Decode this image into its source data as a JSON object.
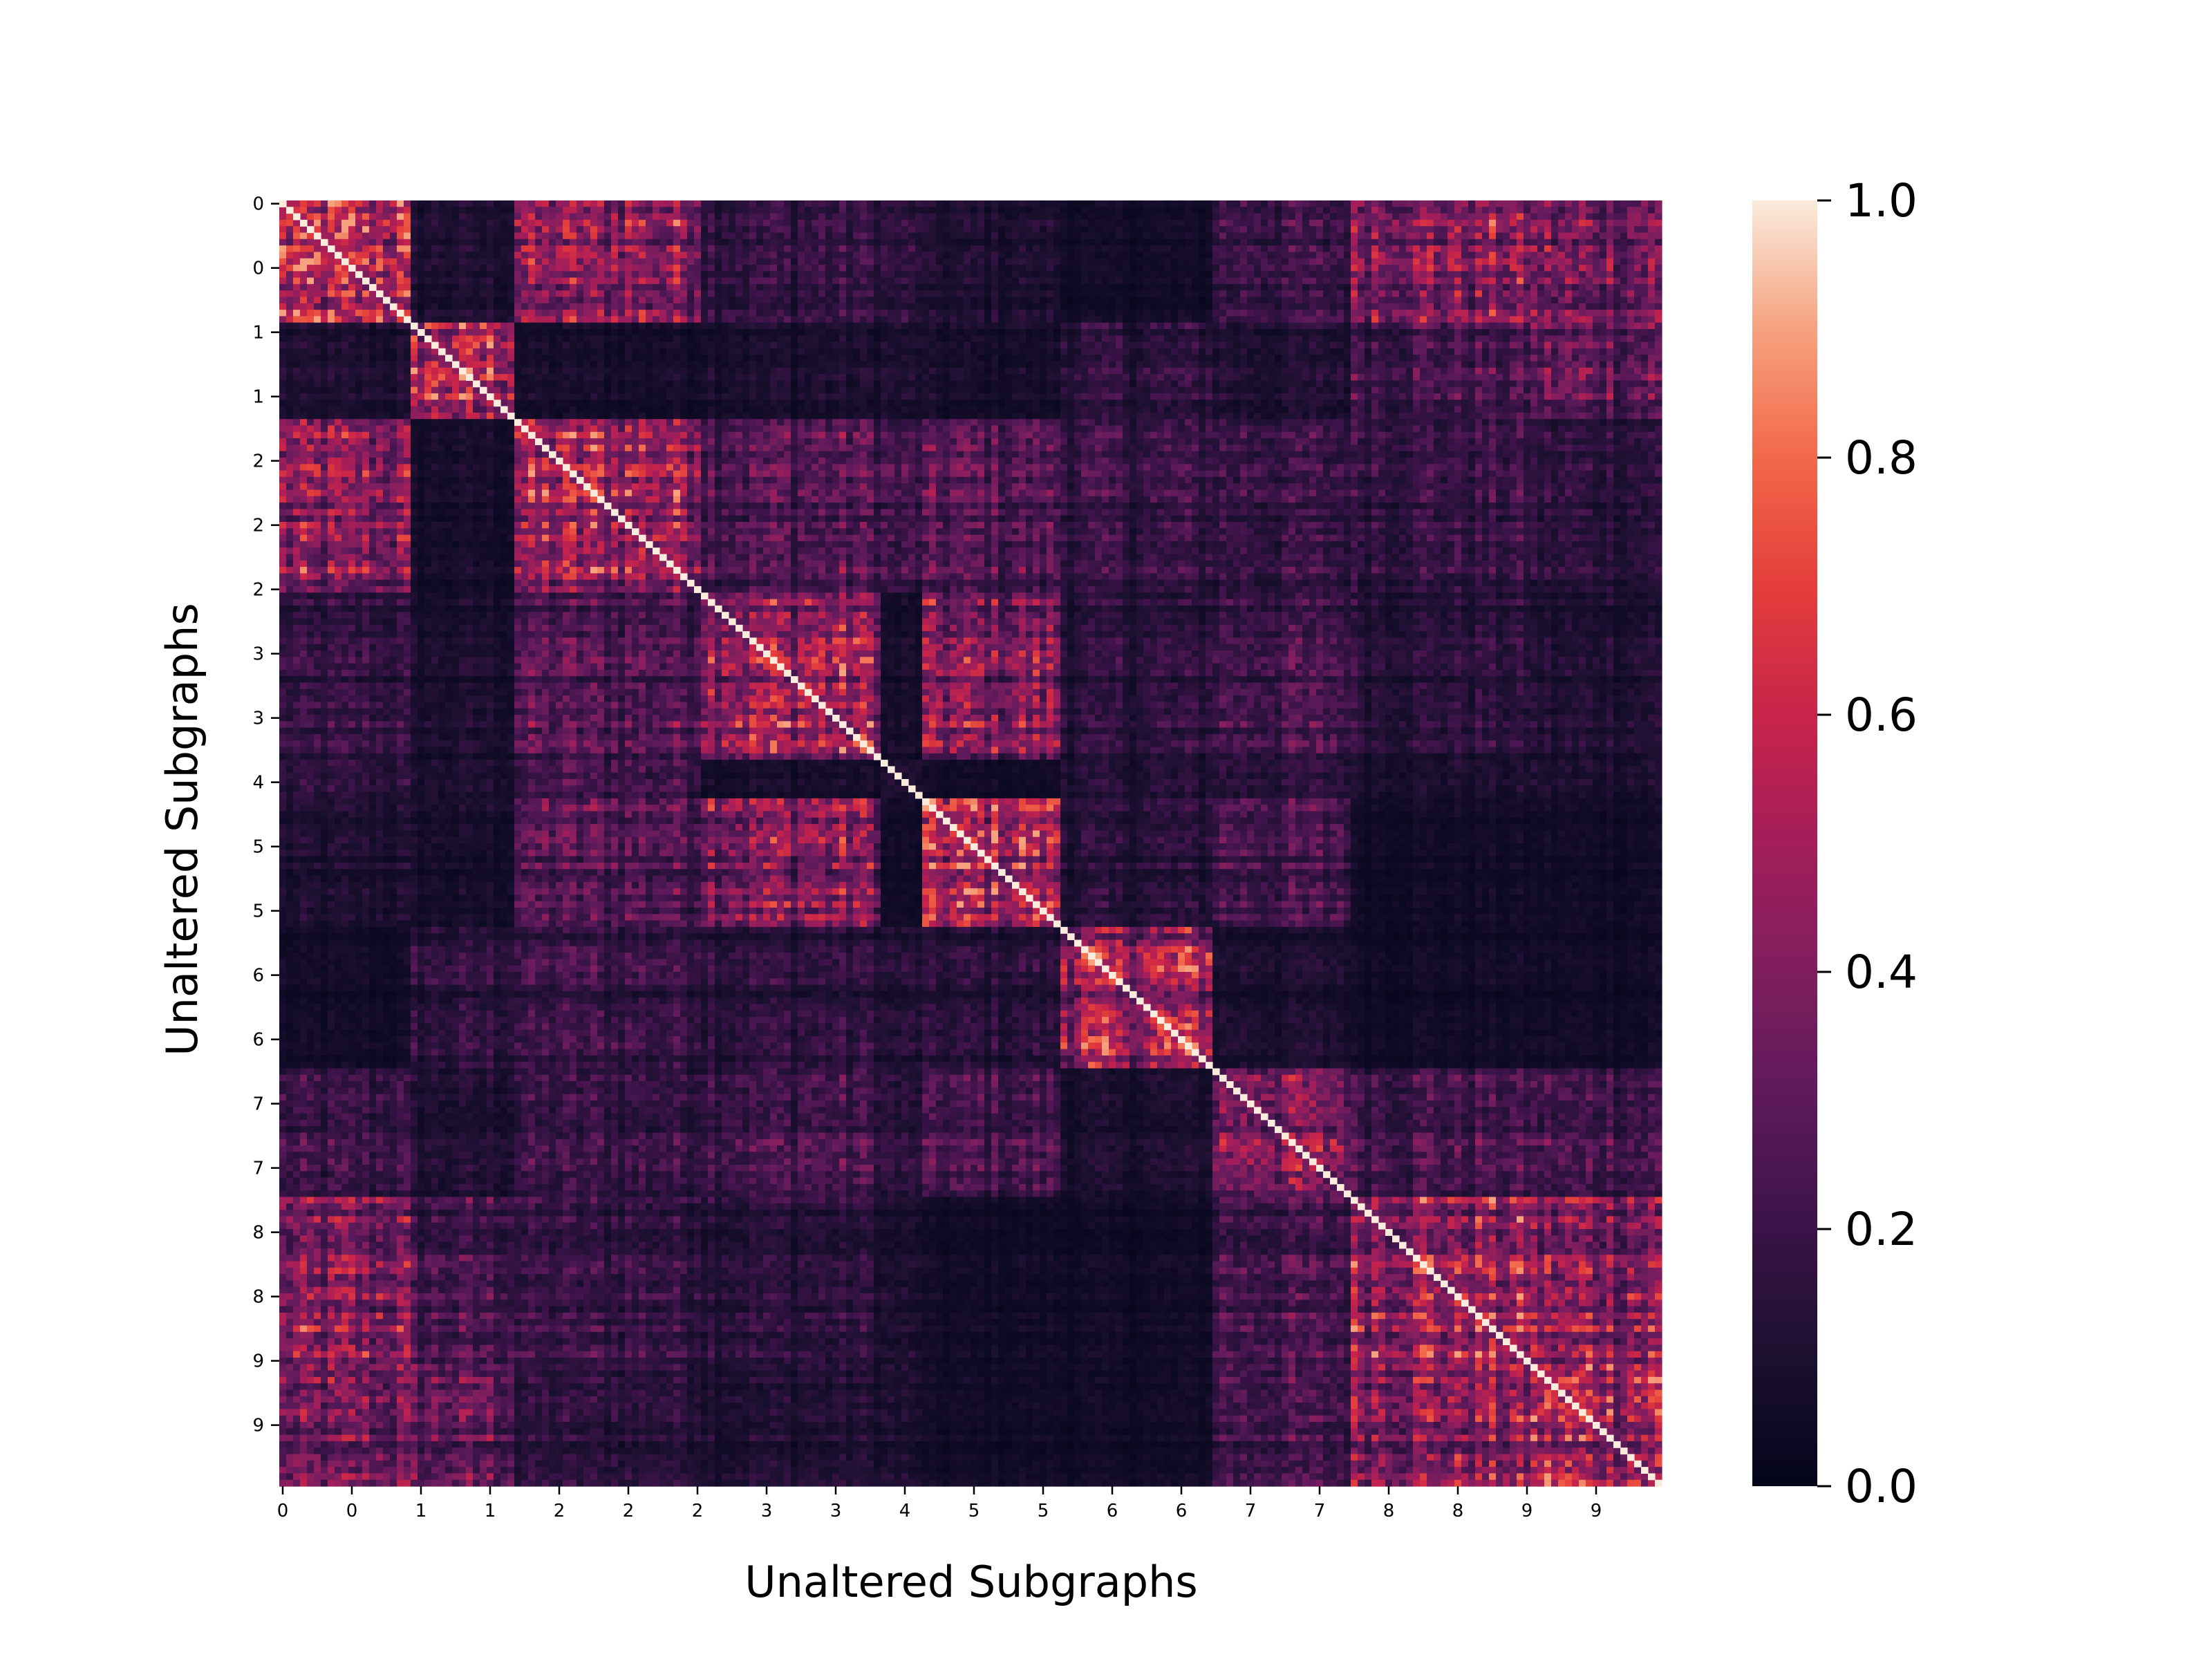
{
  "chart_data": {
    "type": "heatmap",
    "title": "",
    "xlabel": "Unaltered Subgraphs",
    "ylabel": "Unaltered Subgraphs",
    "x_tick_labels": [
      "0",
      "0",
      "1",
      "1",
      "2",
      "2",
      "2",
      "3",
      "3",
      "4",
      "5",
      "5",
      "6",
      "6",
      "7",
      "7",
      "8",
      "8",
      "9",
      "9"
    ],
    "y_tick_labels": [
      "0",
      "0",
      "1",
      "1",
      "2",
      "2",
      "2",
      "3",
      "3",
      "4",
      "5",
      "5",
      "6",
      "6",
      "7",
      "7",
      "8",
      "8",
      "9",
      "9"
    ],
    "matrix_size": 200,
    "diagonal_value": 1.0,
    "value_range": [
      0.0,
      1.0
    ],
    "colormap": "rocket",
    "colorbar": {
      "ticks": [
        0.0,
        0.2,
        0.4,
        0.6,
        0.8,
        1.0
      ],
      "tick_labels": [
        "0.0",
        "0.2",
        "0.4",
        "0.6",
        "0.8",
        "1.0"
      ]
    },
    "blocks": [
      {
        "class": "0",
        "start": 0,
        "end": 19
      },
      {
        "class": "1",
        "start": 19,
        "end": 34
      },
      {
        "class": "2",
        "start": 34,
        "end": 61
      },
      {
        "class": "3",
        "start": 61,
        "end": 87
      },
      {
        "class": "4",
        "start": 87,
        "end": 93
      },
      {
        "class": "5",
        "start": 93,
        "end": 113
      },
      {
        "class": "6",
        "start": 113,
        "end": 135
      },
      {
        "class": "7",
        "start": 135,
        "end": 155
      },
      {
        "class": "8",
        "start": 155,
        "end": 181
      },
      {
        "class": "9",
        "start": 181,
        "end": 200
      }
    ],
    "within_block_mean": {
      "0": 0.55,
      "1": 0.55,
      "2": 0.5,
      "3": 0.52,
      "4": 0.1,
      "5": 0.55,
      "6": 0.5,
      "7": 0.42,
      "8": 0.52,
      "9": 0.55
    },
    "between_block_mean": {
      "0-2": 0.42,
      "0-8": 0.42,
      "0-9": 0.36,
      "0-5": 0.1,
      "0-6": 0.06,
      "0-1": 0.1,
      "0-3": 0.18,
      "0-4": 0.15,
      "0-7": 0.2,
      "1-9": 0.32,
      "1-8": 0.24,
      "1-2": 0.08,
      "1-3": 0.1,
      "1-4": 0.1,
      "1-5": 0.08,
      "1-6": 0.16,
      "1-7": 0.12,
      "2-3": 0.28,
      "2-5": 0.28,
      "2-6": 0.2,
      "2-7": 0.2,
      "2-8": 0.2,
      "2-9": 0.16,
      "2-4": 0.22,
      "3-5": 0.42,
      "3-4": 0.08,
      "3-6": 0.16,
      "3-7": 0.24,
      "3-8": 0.16,
      "3-9": 0.12,
      "4-5": 0.06,
      "4-6": 0.12,
      "4-7": 0.14,
      "4-8": 0.1,
      "4-9": 0.1,
      "5-6": 0.14,
      "5-7": 0.24,
      "5-8": 0.06,
      "5-9": 0.06,
      "6-7": 0.1,
      "6-8": 0.06,
      "6-9": 0.06,
      "7-8": 0.24,
      "7-9": 0.24,
      "8-9": 0.46
    }
  }
}
